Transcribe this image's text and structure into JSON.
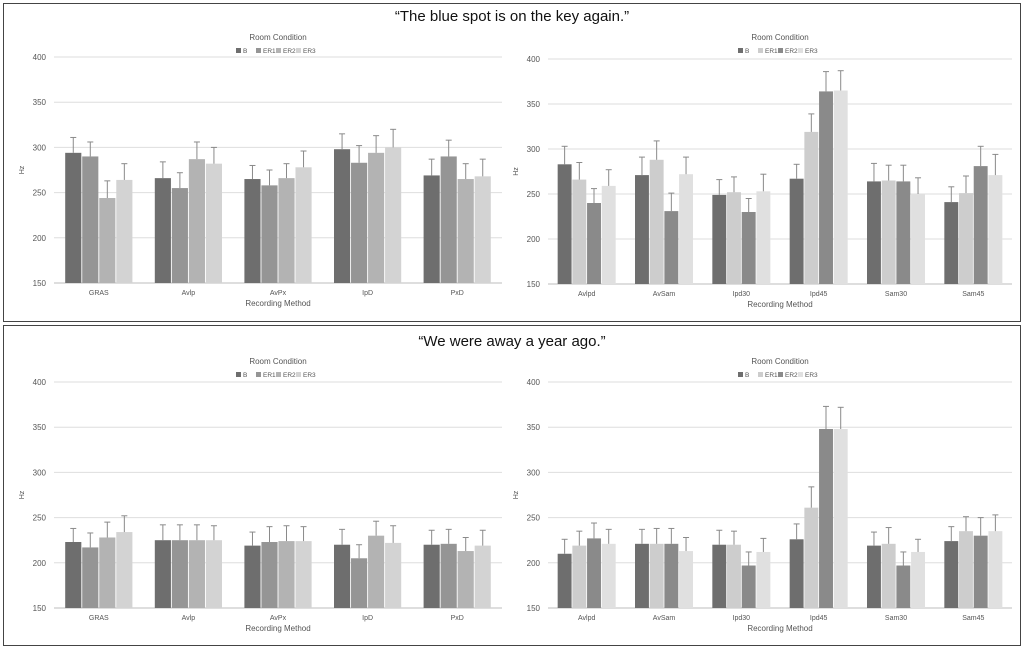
{
  "panels": [
    {
      "quote": "“The blue spot is on the key again.”"
    },
    {
      "quote": "“We were away a year ago.”"
    }
  ],
  "chart_data": [
    {
      "type": "bar",
      "title": "Room Condition",
      "xlabel": "Recording Method",
      "ylabel": "Hz",
      "ylim": [
        150,
        400
      ],
      "yticks": [
        150,
        200,
        250,
        300,
        350,
        400
      ],
      "grid": true,
      "legend_position": "top",
      "categories": [
        "GRAS",
        "Avlp",
        "AvPx",
        "IpD",
        "PxD"
      ],
      "series": [
        {
          "name": "B",
          "color": "#6e6e6e",
          "values": [
            294,
            266,
            265,
            298,
            269
          ],
          "errors": [
            17,
            18,
            15,
            17,
            18
          ]
        },
        {
          "name": "ER1",
          "color": "#959595",
          "values": [
            290,
            255,
            258,
            283,
            290
          ],
          "errors": [
            16,
            17,
            17,
            19,
            18
          ]
        },
        {
          "name": "ER2",
          "color": "#b3b3b3",
          "values": [
            244,
            287,
            266,
            294,
            265
          ],
          "errors": [
            19,
            19,
            16,
            19,
            17
          ]
        },
        {
          "name": "ER3",
          "color": "#d3d3d3",
          "values": [
            264,
            282,
            278,
            300,
            268
          ],
          "errors": [
            18,
            18,
            18,
            20,
            19
          ]
        }
      ]
    },
    {
      "type": "bar",
      "title": "Room Condition",
      "xlabel": "Recording Method",
      "ylabel": "Hz",
      "ylim": [
        150,
        400
      ],
      "yticks": [
        150,
        200,
        250,
        300,
        350,
        400
      ],
      "grid": true,
      "legend_position": "top",
      "categories": [
        "Avlpd",
        "AvSam",
        "Ipd30",
        "Ipd45",
        "Sam30",
        "Sam45"
      ],
      "series": [
        {
          "name": "B",
          "color": "#6e6e6e",
          "values": [
            283,
            271,
            249,
            267,
            264,
            241
          ],
          "errors": [
            20,
            20,
            17,
            16,
            20,
            17
          ]
        },
        {
          "name": "ER1",
          "color": "#cdcdcd",
          "values": [
            266,
            288,
            252,
            319,
            265,
            251
          ],
          "errors": [
            19,
            21,
            17,
            20,
            17,
            19
          ]
        },
        {
          "name": "ER2",
          "color": "#8a8a8a",
          "values": [
            240,
            231,
            230,
            364,
            264,
            281
          ],
          "errors": [
            16,
            20,
            15,
            22,
            18,
            22
          ]
        },
        {
          "name": "ER3",
          "color": "#e0e0e0",
          "values": [
            259,
            272,
            253,
            365,
            250,
            271
          ],
          "errors": [
            18,
            19,
            19,
            22,
            18,
            23
          ]
        }
      ]
    },
    {
      "type": "bar",
      "title": "Room Condition",
      "xlabel": "Recording Method",
      "ylabel": "Hz",
      "ylim": [
        150,
        400
      ],
      "yticks": [
        150,
        200,
        250,
        300,
        350,
        400
      ],
      "grid": true,
      "legend_position": "top",
      "categories": [
        "GRAS",
        "Avlp",
        "AvPx",
        "IpD",
        "PxD"
      ],
      "series": [
        {
          "name": "B",
          "color": "#6e6e6e",
          "values": [
            223,
            225,
            219,
            220,
            220
          ],
          "errors": [
            15,
            17,
            15,
            17,
            16
          ]
        },
        {
          "name": "ER1",
          "color": "#959595",
          "values": [
            217,
            225,
            223,
            205,
            221
          ],
          "errors": [
            16,
            17,
            17,
            15,
            16
          ]
        },
        {
          "name": "ER2",
          "color": "#b3b3b3",
          "values": [
            228,
            225,
            224,
            230,
            213
          ],
          "errors": [
            17,
            17,
            17,
            16,
            15
          ]
        },
        {
          "name": "ER3",
          "color": "#d3d3d3",
          "values": [
            234,
            225,
            224,
            222,
            219
          ],
          "errors": [
            18,
            16,
            16,
            19,
            17
          ]
        }
      ]
    },
    {
      "type": "bar",
      "title": "Room Condition",
      "xlabel": "Recording Method",
      "ylabel": "Hz",
      "ylim": [
        150,
        400
      ],
      "yticks": [
        150,
        200,
        250,
        300,
        350,
        400
      ],
      "grid": true,
      "legend_position": "top",
      "categories": [
        "Avlpd",
        "AvSam",
        "Ipd30",
        "Ipd45",
        "Sam30",
        "Sam45"
      ],
      "series": [
        {
          "name": "B",
          "color": "#6e6e6e",
          "values": [
            210,
            221,
            220,
            226,
            219,
            224
          ],
          "errors": [
            16,
            16,
            16,
            17,
            15,
            16
          ]
        },
        {
          "name": "ER1",
          "color": "#cdcdcd",
          "values": [
            219,
            221,
            220,
            261,
            221,
            235
          ],
          "errors": [
            16,
            17,
            15,
            23,
            18,
            16
          ]
        },
        {
          "name": "ER2",
          "color": "#8a8a8a",
          "values": [
            227,
            221,
            197,
            348,
            197,
            230
          ],
          "errors": [
            17,
            17,
            15,
            25,
            15,
            20
          ]
        },
        {
          "name": "ER3",
          "color": "#e0e0e0",
          "values": [
            221,
            213,
            212,
            348,
            212,
            235
          ],
          "errors": [
            16,
            15,
            15,
            24,
            14,
            18
          ]
        }
      ]
    }
  ]
}
